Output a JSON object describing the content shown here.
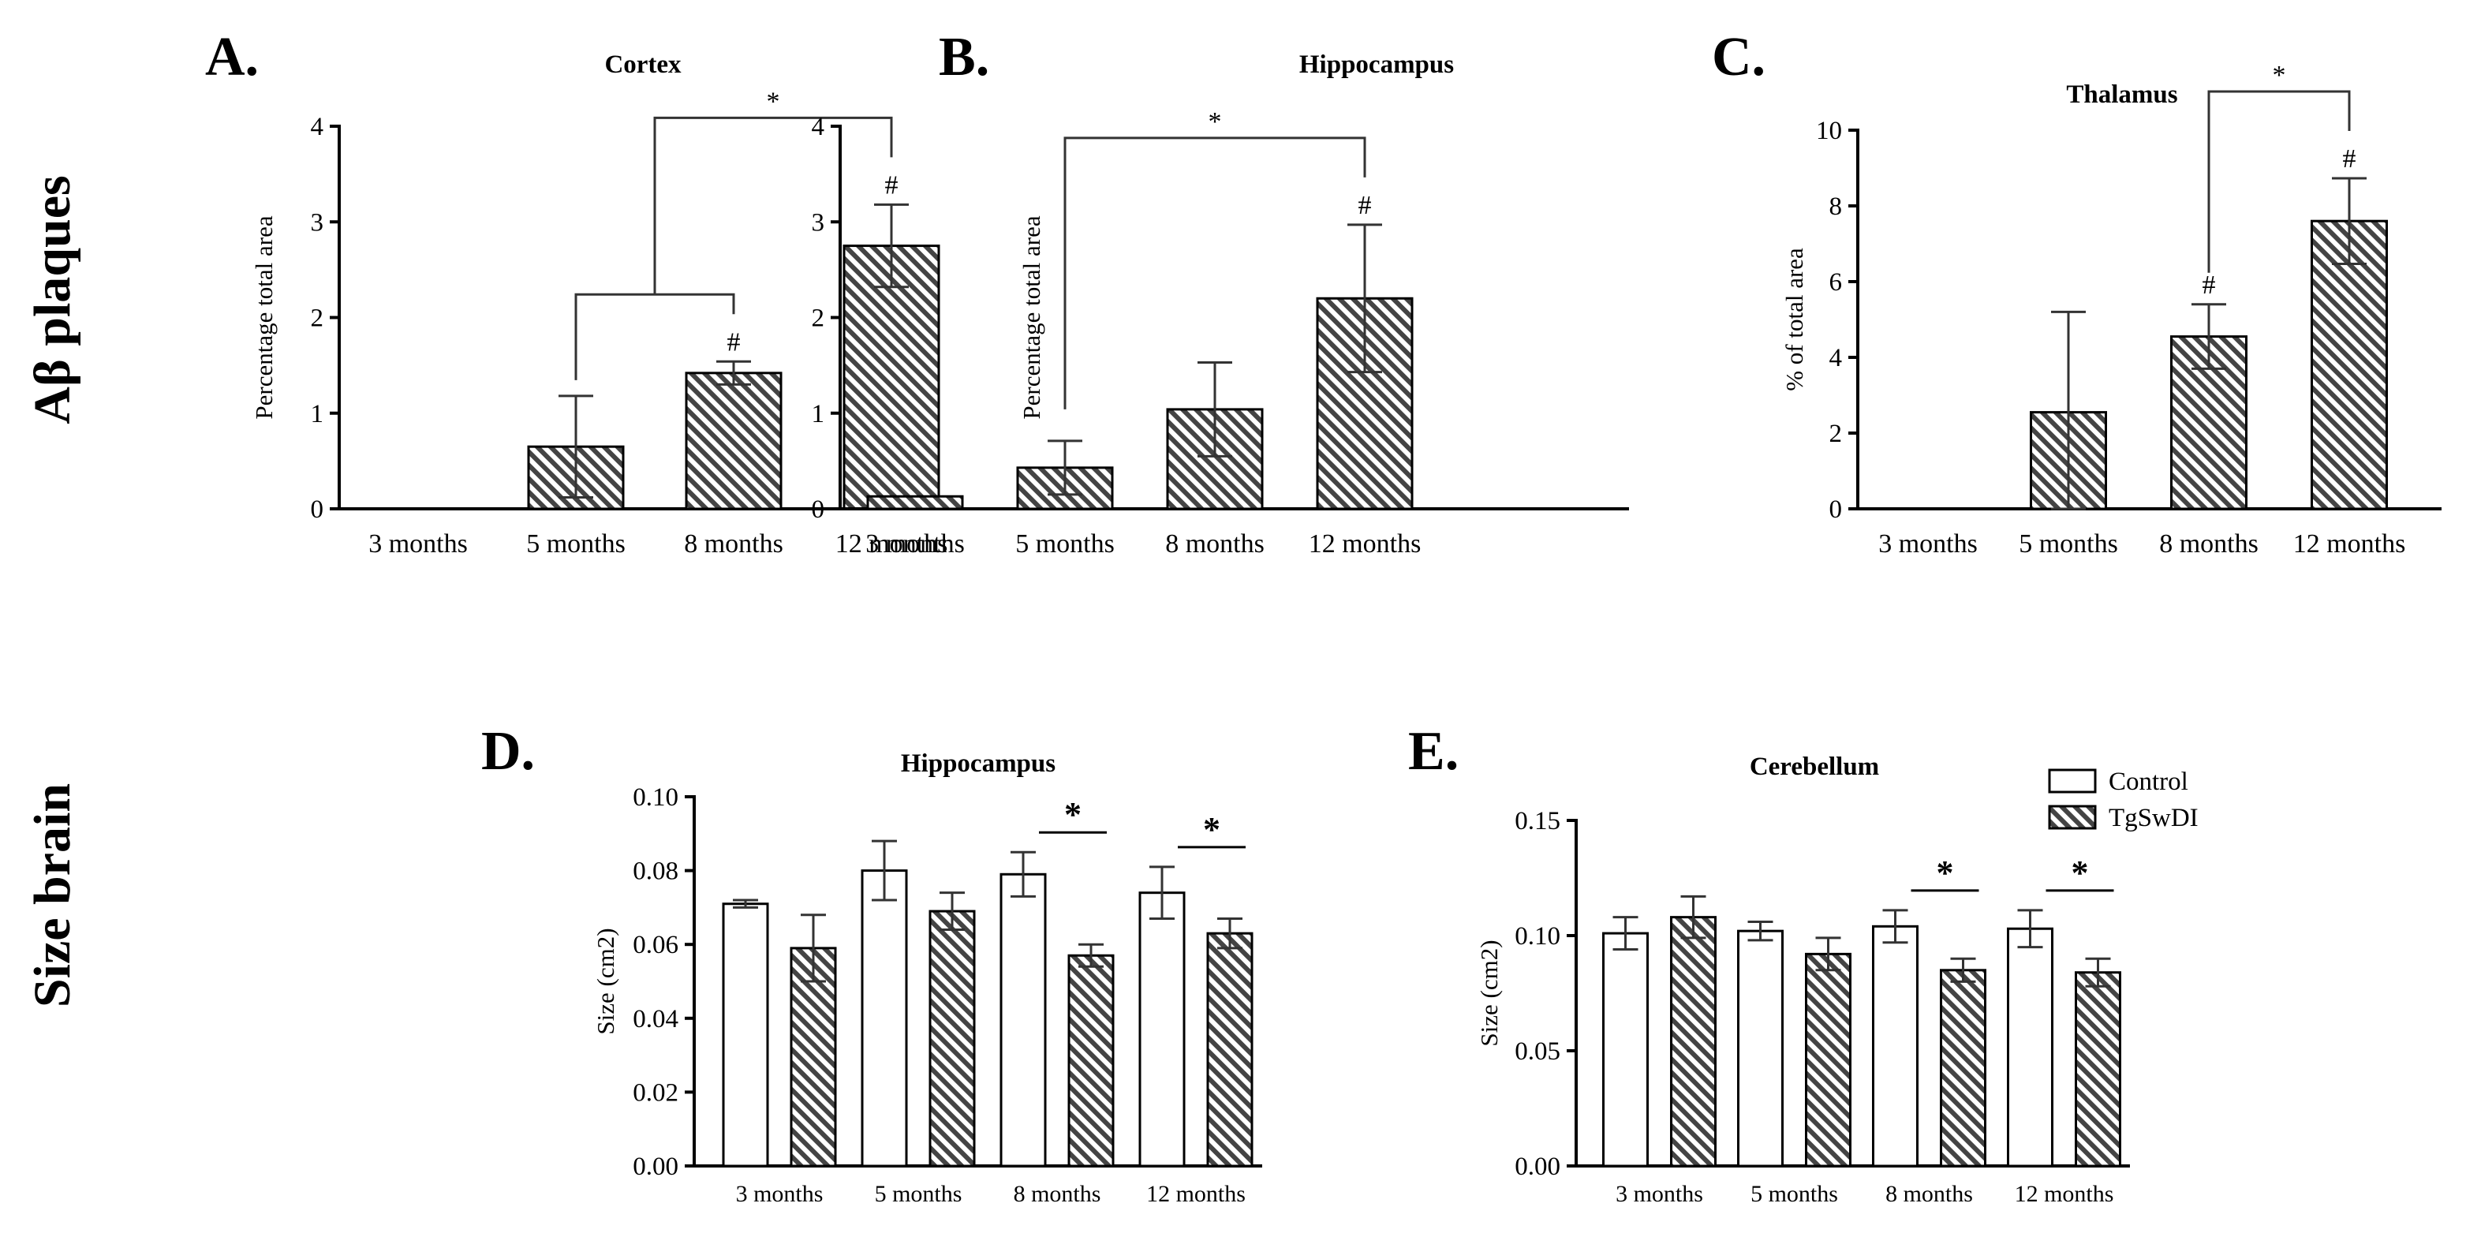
{
  "row_labels": [
    "Aβ plaques",
    "Size brain"
  ],
  "tick_label_suffix": " months",
  "chart_data": [
    {
      "letter": "A.",
      "type": "bar",
      "title": "Cortex",
      "ylabel": "Percentage total area",
      "xlabel": "",
      "ylim": [
        0,
        4
      ],
      "yticks": [
        "0",
        "1",
        "2",
        "3",
        "4"
      ],
      "categories": [
        "3 months",
        "5 months",
        "8 months",
        "12 months"
      ],
      "series": [
        {
          "name": "TgSwDI",
          "values": [
            0,
            0.65,
            1.42,
            2.75
          ],
          "errors": [
            0,
            0.53,
            0.12,
            0.43
          ]
        }
      ],
      "marks": [
        "",
        "",
        "#",
        "#"
      ],
      "significance": [
        {
          "label": "*",
          "groups": [
            [
              1,
              2
            ],
            [
              3
            ]
          ]
        }
      ]
    },
    {
      "letter": "B.",
      "type": "bar",
      "title": "Hippocampus",
      "ylabel": "Percentage total area",
      "xlabel": "",
      "ylim": [
        0,
        4
      ],
      "yticks": [
        "0",
        "1",
        "2",
        "3",
        "4"
      ],
      "categories": [
        "3 months",
        "5 months",
        "8 months",
        "12 months"
      ],
      "series": [
        {
          "name": "TgSwDI",
          "values": [
            0.13,
            0.43,
            1.04,
            2.2
          ],
          "errors": [
            0,
            0.28,
            0.49,
            0.77
          ]
        }
      ],
      "marks": [
        "",
        "",
        "",
        "#"
      ],
      "significance": [
        {
          "label": "*",
          "groups": [
            [
              1
            ],
            [
              3
            ]
          ]
        }
      ]
    },
    {
      "letter": "C.",
      "type": "bar",
      "title": "Thalamus",
      "ylabel": "% of total area",
      "xlabel": "",
      "ylim": [
        0,
        10
      ],
      "yticks": [
        "0",
        "2",
        "4",
        "6",
        "8",
        "10"
      ],
      "categories": [
        "3 months",
        "5 months",
        "8 months",
        "12 months"
      ],
      "series": [
        {
          "name": "TgSwDI",
          "values": [
            0,
            2.55,
            4.55,
            7.6
          ],
          "errors": [
            0,
            2.65,
            0.85,
            1.13
          ]
        }
      ],
      "marks": [
        "",
        "",
        "#",
        "#"
      ],
      "significance": [
        {
          "label": "*",
          "groups": [
            [
              2
            ],
            [
              3
            ]
          ]
        }
      ]
    },
    {
      "letter": "D.",
      "type": "bar",
      "title": "Hippocampus",
      "ylabel": "Size (cm2)",
      "xlabel": "",
      "ylim": [
        0,
        0.1
      ],
      "yticks": [
        "0.00",
        "0.02",
        "0.04",
        "0.06",
        "0.08",
        "0.10"
      ],
      "categories": [
        "3 months",
        "5 months",
        "8 months",
        "12 months"
      ],
      "series": [
        {
          "name": "Control",
          "values": [
            0.071,
            0.08,
            0.079,
            0.074
          ],
          "errors": [
            0.001,
            0.008,
            0.006,
            0.007
          ]
        },
        {
          "name": "TgSwDI",
          "values": [
            0.059,
            0.069,
            0.057,
            0.063
          ],
          "errors": [
            0.009,
            0.005,
            0.003,
            0.004
          ]
        }
      ],
      "pair_stars": [
        "",
        "",
        "*",
        "*"
      ]
    },
    {
      "letter": "E.",
      "type": "bar",
      "title": "Cerebellum",
      "ylabel": "Size (cm2)",
      "xlabel": "",
      "ylim": [
        0,
        0.15
      ],
      "yticks": [
        "0.00",
        "0.05",
        "0.10",
        "0.15"
      ],
      "categories": [
        "3 months",
        "5 months",
        "8 months",
        "12 months"
      ],
      "series": [
        {
          "name": "Control",
          "values": [
            0.101,
            0.102,
            0.104,
            0.103
          ],
          "errors": [
            0.007,
            0.004,
            0.007,
            0.008
          ]
        },
        {
          "name": "TgSwDI",
          "values": [
            0.108,
            0.092,
            0.085,
            0.084
          ],
          "errors": [
            0.009,
            0.007,
            0.005,
            0.006
          ]
        }
      ],
      "pair_stars": [
        "",
        "",
        "*",
        "*"
      ],
      "legend": [
        "Control",
        "TgSwDI"
      ]
    }
  ]
}
